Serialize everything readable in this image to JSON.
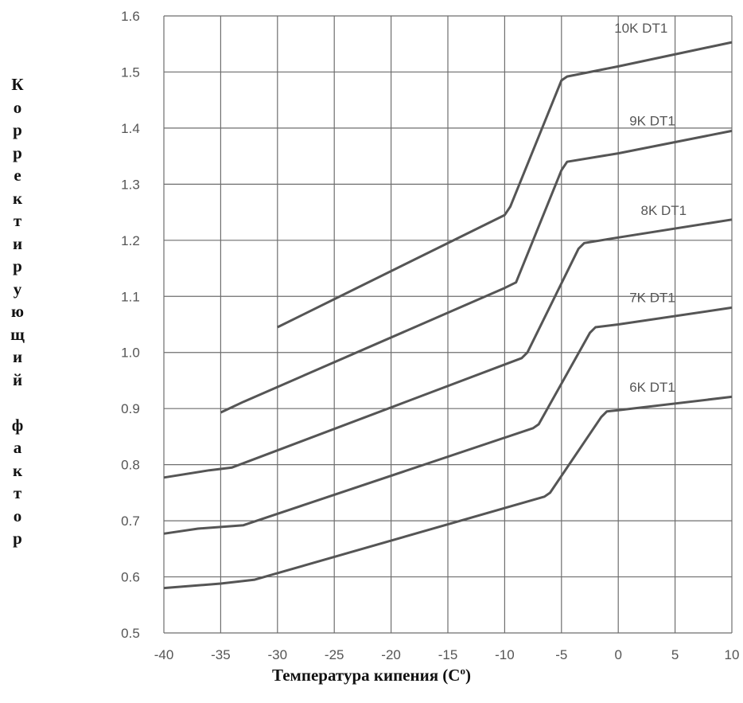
{
  "chart_data": {
    "type": "line",
    "title": "",
    "xlabel": "Температура кипения (C°)",
    "xlabel_main": "Температура кипения (C",
    "xlabel_sup": "o",
    "xlabel_end": ")",
    "ylabel": "Корректирующий фактор",
    "ylabel_chars": [
      "К",
      "о",
      "р",
      "р",
      "е",
      "к",
      "т",
      "и",
      "р",
      "у",
      "ю",
      "щ",
      "и",
      "й",
      "",
      "ф",
      "а",
      "к",
      "т",
      "о",
      "р"
    ],
    "xlim": [
      -40,
      10
    ],
    "ylim": [
      0.5,
      1.6
    ],
    "x_ticks": [
      -40,
      -35,
      -30,
      -25,
      -20,
      -15,
      -10,
      -5,
      0,
      5,
      10
    ],
    "x_tick_labels": [
      "-40",
      "-35",
      "-30",
      "-25",
      "-20",
      "-15",
      "-10",
      "-5",
      "0",
      "5",
      "10"
    ],
    "y_ticks": [
      0.5,
      0.6,
      0.7,
      0.8,
      0.9,
      1.0,
      1.1,
      1.2,
      1.3,
      1.4,
      1.5,
      1.6
    ],
    "y_tick_labels": [
      "0.5",
      "0.6",
      "0.7",
      "0.8",
      "0.9",
      "1.0",
      "1.1",
      "1.2",
      "1.3",
      "1.4",
      "1.5",
      "1.6"
    ],
    "grid": true,
    "series": [
      {
        "name": "10K DT1",
        "x": [
          -30,
          -10,
          -9.5,
          -5,
          -4.5,
          0,
          10
        ],
        "y": [
          1.045,
          1.245,
          1.26,
          1.485,
          1.492,
          1.51,
          1.553
        ]
      },
      {
        "name": "9K DT1",
        "x": [
          -35,
          -33,
          -10,
          -9,
          -5,
          -4.5,
          0,
          10
        ],
        "y": [
          0.893,
          0.912,
          1.115,
          1.125,
          1.325,
          1.34,
          1.355,
          1.395
        ]
      },
      {
        "name": "8K DT1",
        "x": [
          -40,
          -36,
          -34,
          -8.5,
          -8,
          -3.5,
          -3,
          0,
          10
        ],
        "y": [
          0.777,
          0.79,
          0.795,
          0.99,
          1.0,
          1.185,
          1.195,
          1.205,
          1.237
        ]
      },
      {
        "name": "7K DT1",
        "x": [
          -40,
          -37,
          -33,
          -7.5,
          -7,
          -2.5,
          -2,
          0,
          10
        ],
        "y": [
          0.677,
          0.686,
          0.692,
          0.865,
          0.872,
          1.035,
          1.045,
          1.05,
          1.08
        ]
      },
      {
        "name": "6K DT1",
        "x": [
          -40,
          -35,
          -32,
          -6.5,
          -6,
          -1.5,
          -1,
          0,
          10
        ],
        "y": [
          0.58,
          0.588,
          0.595,
          0.743,
          0.75,
          0.885,
          0.895,
          0.897,
          0.921
        ]
      }
    ],
    "series_label_positions": [
      {
        "x": 2,
        "y": 1.57
      },
      {
        "x": 3,
        "y": 1.405
      },
      {
        "x": 4,
        "y": 1.245
      },
      {
        "x": 3,
        "y": 1.09
      },
      {
        "x": 3,
        "y": 0.93
      }
    ],
    "colors": {
      "line": "#555555",
      "grid": "#6e6e6e",
      "text": "#555555"
    }
  }
}
